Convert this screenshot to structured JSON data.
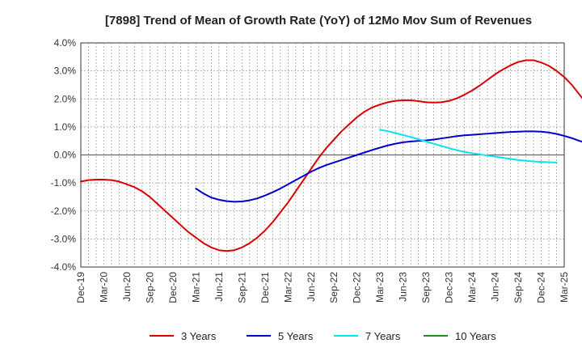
{
  "chart_data": {
    "type": "line",
    "title": "[7898]  Trend of Mean of Growth Rate (YoY) of 12Mo Mov Sum of Revenues",
    "xlabel": "",
    "ylabel": "",
    "ylim": [
      -4.0,
      4.0
    ],
    "y_ticks": [
      "4.0%",
      "3.0%",
      "2.0%",
      "1.0%",
      "0.0%",
      "-1.0%",
      "-2.0%",
      "-3.0%",
      "-4.0%"
    ],
    "y_tick_values": [
      4,
      3,
      2,
      1,
      0,
      -1,
      -2,
      -3,
      -4
    ],
    "x_tick_labels": [
      "Dec-19",
      "Mar-20",
      "Jun-20",
      "Sep-20",
      "Dec-20",
      "Mar-21",
      "Jun-21",
      "Sep-21",
      "Dec-21",
      "Mar-22",
      "Jun-22",
      "Sep-22",
      "Dec-22",
      "Mar-23",
      "Jun-23",
      "Sep-23",
      "Dec-23",
      "Mar-24",
      "Jun-24",
      "Sep-24",
      "Dec-24",
      "Mar-25"
    ],
    "x_months_total": 63,
    "grid": true,
    "legend_position": "bottom",
    "series": [
      {
        "name": "3 Years",
        "color": "#dd0000",
        "start_month": 0,
        "values": [
          -0.95,
          -0.9,
          -0.88,
          -0.88,
          -0.9,
          -0.95,
          -1.05,
          -1.15,
          -1.3,
          -1.5,
          -1.75,
          -2.0,
          -2.25,
          -2.5,
          -2.75,
          -2.95,
          -3.15,
          -3.3,
          -3.4,
          -3.43,
          -3.4,
          -3.3,
          -3.15,
          -2.95,
          -2.7,
          -2.4,
          -2.05,
          -1.7,
          -1.3,
          -0.9,
          -0.5,
          -0.1,
          0.25,
          0.55,
          0.85,
          1.1,
          1.35,
          1.55,
          1.7,
          1.8,
          1.88,
          1.93,
          1.95,
          1.95,
          1.92,
          1.88,
          1.87,
          1.88,
          1.93,
          2.02,
          2.15,
          2.3,
          2.48,
          2.68,
          2.88,
          3.05,
          3.2,
          3.32,
          3.38,
          3.38,
          3.3,
          3.18,
          3.0,
          2.78,
          2.5,
          2.15,
          1.8
        ]
      },
      {
        "name": "5 Years",
        "color": "#0000cc",
        "start_month": 15,
        "values": [
          -1.2,
          -1.38,
          -1.52,
          -1.6,
          -1.65,
          -1.67,
          -1.66,
          -1.62,
          -1.55,
          -1.45,
          -1.33,
          -1.2,
          -1.05,
          -0.9,
          -0.75,
          -0.6,
          -0.47,
          -0.36,
          -0.27,
          -0.18,
          -0.09,
          0.0,
          0.09,
          0.18,
          0.26,
          0.34,
          0.4,
          0.45,
          0.48,
          0.5,
          0.52,
          0.55,
          0.59,
          0.63,
          0.67,
          0.7,
          0.72,
          0.74,
          0.76,
          0.78,
          0.8,
          0.82,
          0.83,
          0.84,
          0.84,
          0.83,
          0.8,
          0.75,
          0.68,
          0.6,
          0.5,
          0.42
        ]
      },
      {
        "name": "7 Years",
        "color": "#00e5ee",
        "start_month": 39,
        "values": [
          0.9,
          0.85,
          0.78,
          0.71,
          0.64,
          0.56,
          0.48,
          0.4,
          0.32,
          0.24,
          0.17,
          0.11,
          0.06,
          0.02,
          -0.02,
          -0.06,
          -0.1,
          -0.14,
          -0.18,
          -0.21,
          -0.23,
          -0.25,
          -0.26,
          -0.27
        ]
      },
      {
        "name": "10 Years",
        "color": "#228b22",
        "start_month": 0,
        "values": []
      }
    ]
  }
}
